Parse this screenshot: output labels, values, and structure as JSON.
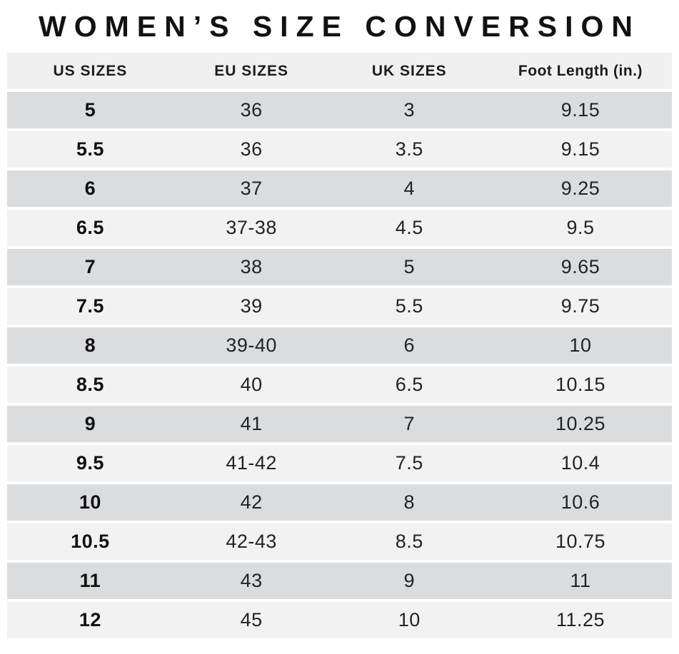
{
  "title": "WOMEN’S SIZE CONVERSION",
  "chart_data": {
    "type": "table",
    "title": "WOMEN’S SIZE CONVERSION",
    "columns": [
      "US SIZES",
      "EU SIZES",
      "UK SIZES",
      "Foot Length (in.)"
    ],
    "rows": [
      [
        "5",
        "36",
        "3",
        "9.15"
      ],
      [
        "5.5",
        "36",
        "3.5",
        "9.15"
      ],
      [
        "6",
        "37",
        "4",
        "9.25"
      ],
      [
        "6.5",
        "37-38",
        "4.5",
        "9.5"
      ],
      [
        "7",
        "38",
        "5",
        "9.65"
      ],
      [
        "7.5",
        "39",
        "5.5",
        "9.75"
      ],
      [
        "8",
        "39-40",
        "6",
        "10"
      ],
      [
        "8.5",
        "40",
        "6.5",
        "10.15"
      ],
      [
        "9",
        "41",
        "7",
        "10.25"
      ],
      [
        "9.5",
        "41-42",
        "7.5",
        "10.4"
      ],
      [
        "10",
        "42",
        "8",
        "10.6"
      ],
      [
        "10.5",
        "42-43",
        "8.5",
        "10.75"
      ],
      [
        "11",
        "43",
        "9",
        "11"
      ],
      [
        "12",
        "45",
        "10",
        "11.25"
      ]
    ]
  },
  "colors": {
    "header_bg": "#f0f0f1",
    "row_dark": "#dbdcde",
    "row_light": "#f2f2f3",
    "text": "#222326",
    "title_text": "#121212",
    "background": "#ffffff"
  }
}
